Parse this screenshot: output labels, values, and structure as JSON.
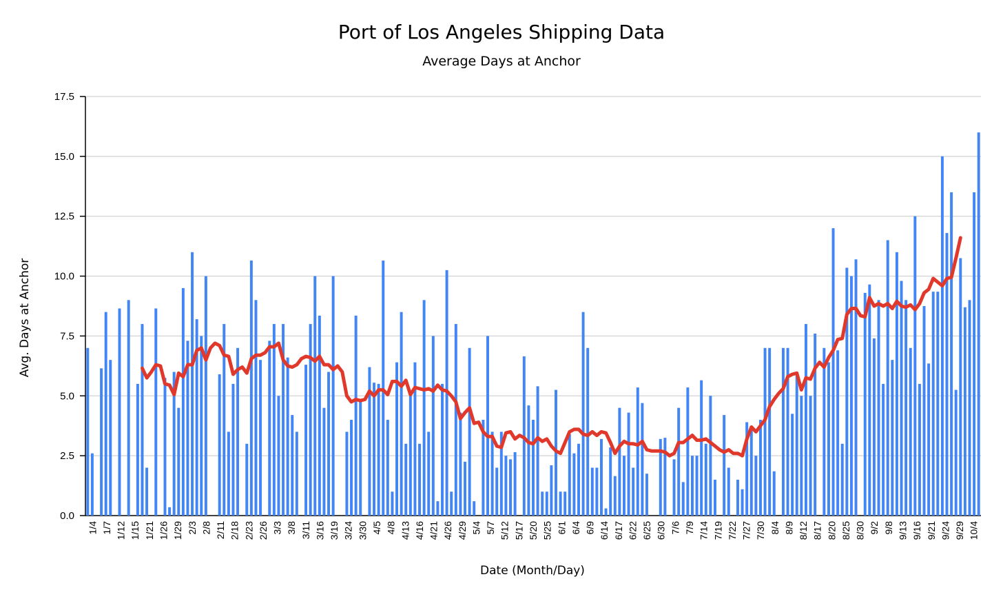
{
  "chart_data": {
    "type": "bar",
    "title": "Port of Los Angeles Shipping Data",
    "subtitle": "Average Days at Anchor",
    "xlabel": "Date (Month/Day)",
    "ylabel": "Avg. Days at Anchor",
    "ylim": [
      0,
      17.5
    ],
    "yticks": [
      "0.0",
      "2.5",
      "5.0",
      "7.5",
      "10.0",
      "12.5",
      "15.0",
      "17.5"
    ],
    "grid": true,
    "colors": {
      "bars": "#4285f4",
      "line": "#e0392b",
      "grid": "#c8c8c8"
    },
    "x_tick_labels": [
      "1/4",
      "1/7",
      "1/12",
      "1/15",
      "1/21",
      "1/26",
      "1/29",
      "2/3",
      "2/8",
      "2/11",
      "2/18",
      "2/23",
      "2/26",
      "3/3",
      "3/8",
      "3/11",
      "3/16",
      "3/19",
      "3/24",
      "3/30",
      "4/5",
      "4/8",
      "4/13",
      "4/16",
      "4/21",
      "4/26",
      "4/29",
      "5/4",
      "5/7",
      "5/12",
      "5/17",
      "5/20",
      "5/25",
      "6/1",
      "6/4",
      "6/9",
      "6/14",
      "6/17",
      "6/22",
      "6/25",
      "6/30",
      "7/6",
      "7/9",
      "7/14",
      "7/19",
      "7/22",
      "7/27",
      "7/30",
      "8/4",
      "8/9",
      "8/12",
      "8/17",
      "8/20",
      "8/25",
      "8/30",
      "9/2",
      "9/8",
      "9/13",
      "9/16",
      "9/21",
      "9/24",
      "9/29",
      "10/4"
    ],
    "series": [
      {
        "type": "bar",
        "values": [
          7.0,
          2.6,
          0,
          6.15,
          8.5,
          6.5,
          0,
          8.65,
          0,
          9.0,
          0,
          5.5,
          8.0,
          2.0,
          0,
          8.65,
          0,
          5.75,
          0.35,
          6.0,
          4.5,
          9.5,
          7.3,
          11.0,
          8.2,
          7.5,
          10.0,
          0,
          0,
          5.9,
          8.0,
          3.5,
          5.5,
          7.0,
          0,
          3.0,
          10.65,
          9.0,
          6.5,
          0,
          7.3,
          8.0,
          5.0,
          8.0,
          6.6,
          4.2,
          3.5,
          0,
          6.3,
          8.0,
          10.0,
          8.35,
          4.5,
          6.0,
          10.0,
          0,
          0,
          3.5,
          4.0,
          8.35,
          4.8,
          0,
          6.2,
          5.55,
          5.5,
          10.65,
          4.0,
          1.0,
          6.4,
          8.5,
          3.0,
          5.0,
          6.4,
          3.0,
          9.0,
          3.5,
          7.5,
          0.6,
          5.5,
          10.25,
          1.0,
          8.0,
          4.3,
          2.25,
          7.0,
          0.6,
          0,
          4.0,
          7.5,
          3.5,
          2.0,
          3.5,
          2.5,
          2.35,
          2.65,
          0,
          6.65,
          4.6,
          4.0,
          5.4,
          1.0,
          1.0,
          2.1,
          5.25,
          1.0,
          1.0,
          3.4,
          2.6,
          3.0,
          8.5,
          7.0,
          2.0,
          2.0,
          3.2,
          0.3,
          2.85,
          1.65,
          4.5,
          2.5,
          4.3,
          2.0,
          5.35,
          4.7,
          1.75,
          0,
          0,
          3.2,
          3.25,
          0,
          2.35,
          4.5,
          1.4,
          5.35,
          2.5,
          2.5,
          5.65,
          3.0,
          5.0,
          1.5,
          0,
          4.2,
          2.0,
          0,
          1.5,
          1.1,
          3.9,
          3.6,
          2.5,
          4.0,
          7.0,
          7.0,
          1.85,
          0,
          7.0,
          7.0,
          4.25,
          6.0,
          5.0,
          8.0,
          5.0,
          7.6,
          0,
          7.0,
          6.4,
          12.0,
          6.9,
          3.0,
          10.35,
          10.0,
          10.7,
          0,
          9.3,
          9.65,
          7.4,
          9.0,
          5.5,
          11.5,
          6.5,
          11.0,
          9.8,
          9.0,
          7.0,
          12.5,
          5.5,
          8.75,
          6.35,
          9.35,
          9.35,
          15.0,
          11.8,
          13.5,
          5.25,
          10.75,
          8.7,
          9.0,
          13.5,
          16.0
        ]
      },
      {
        "type": "line",
        "values": [
          null,
          null,
          null,
          null,
          null,
          null,
          null,
          null,
          null,
          null,
          null,
          null,
          6.15,
          5.75,
          6.0,
          6.3,
          6.25,
          5.5,
          5.45,
          5.05,
          5.95,
          5.8,
          6.3,
          6.3,
          6.9,
          7.0,
          6.5,
          7.0,
          7.2,
          7.1,
          6.7,
          6.65,
          5.9,
          6.1,
          6.2,
          5.95,
          6.55,
          6.7,
          6.7,
          6.8,
          7.05,
          7.05,
          7.2,
          6.5,
          6.25,
          6.2,
          6.3,
          6.55,
          6.65,
          6.6,
          6.45,
          6.65,
          6.3,
          6.3,
          6.1,
          6.25,
          6.0,
          5.0,
          4.75,
          4.85,
          4.8,
          4.85,
          5.2,
          5.0,
          5.25,
          5.25,
          5.05,
          5.6,
          5.6,
          5.4,
          5.65,
          5.05,
          5.35,
          5.3,
          5.25,
          5.3,
          5.2,
          5.45,
          5.25,
          5.2,
          5.0,
          4.75,
          4.05,
          4.3,
          4.5,
          3.85,
          3.9,
          3.5,
          3.3,
          3.3,
          2.9,
          2.85,
          3.45,
          3.5,
          3.2,
          3.35,
          3.25,
          3.05,
          3.0,
          3.25,
          3.1,
          3.2,
          2.9,
          2.7,
          2.6,
          3.05,
          3.5,
          3.6,
          3.6,
          3.4,
          3.35,
          3.5,
          3.35,
          3.5,
          3.45,
          3.05,
          2.6,
          2.9,
          3.1,
          3.0,
          3.0,
          2.95,
          3.1,
          2.75,
          2.7,
          2.7,
          2.7,
          2.65,
          2.5,
          2.6,
          3.05,
          3.05,
          3.2,
          3.35,
          3.15,
          3.15,
          3.2,
          3.05,
          2.9,
          2.75,
          2.65,
          2.75,
          2.6,
          2.6,
          2.5,
          3.2,
          3.7,
          3.5,
          3.75,
          4.0,
          4.55,
          4.85,
          5.1,
          5.3,
          5.8,
          5.9,
          5.95,
          5.25,
          5.75,
          5.7,
          6.15,
          6.4,
          6.2,
          6.6,
          6.9,
          7.35,
          7.4,
          8.4,
          8.65,
          8.65,
          8.35,
          8.3,
          9.1,
          8.75,
          8.85,
          8.75,
          8.85,
          8.65,
          8.95,
          8.75,
          8.7,
          8.8,
          8.6,
          8.85,
          9.3,
          9.45,
          9.9,
          9.75,
          9.6,
          9.9,
          9.95,
          10.75,
          11.6
        ]
      }
    ]
  }
}
